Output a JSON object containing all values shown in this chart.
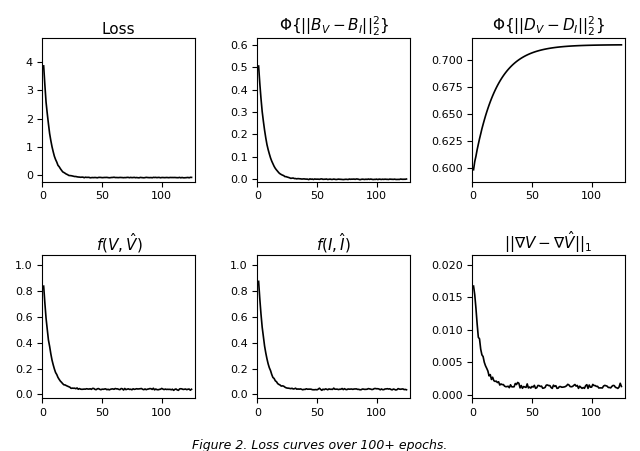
{
  "figsize": [
    6.4,
    4.51
  ],
  "dpi": 100,
  "n_epochs": 125,
  "titles": [
    "Loss",
    "$\\Phi\\{||B_V - B_I||_2^2\\}$",
    "$\\Phi\\{||D_V - D_I||_2^2\\}$",
    "$f(V, \\hat{V})$",
    "$f(I, \\hat{I})$",
    "$||\\nabla V - \\nabla \\hat{V}||_1$"
  ],
  "caption": "Figure 2. Loss curves over 100+ epochs.",
  "line_color": "black",
  "line_width": 1.2,
  "background": "white",
  "title_fontsize": 11
}
